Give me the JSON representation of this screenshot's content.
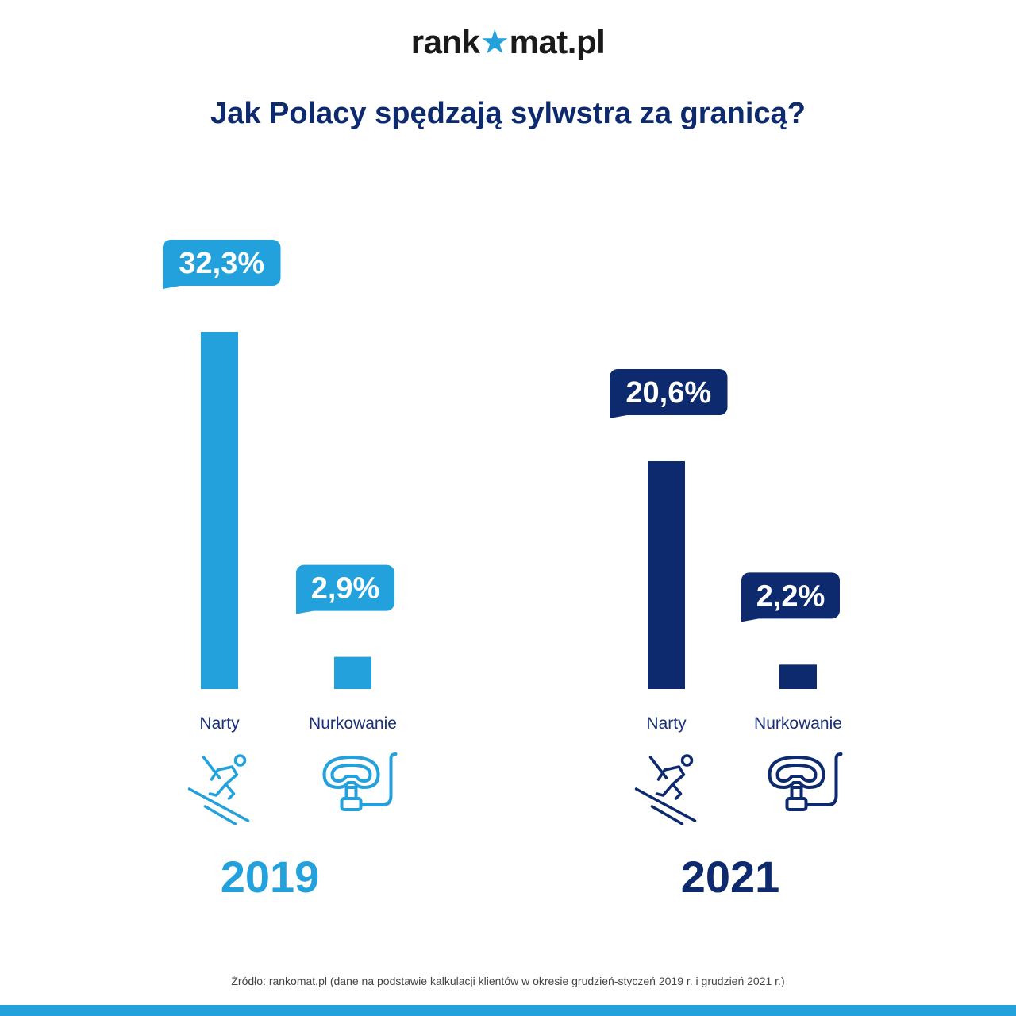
{
  "logo": {
    "left": "rank",
    "star": "★",
    "right": "mat.pl"
  },
  "title": "Jak Polacy spędzają sylwstra za granicą?",
  "source": "Źródło: rankomat.pl (dane na podstawie kalkulacji klientów w okresie grudzień-styczeń 2019 r. i grudzień 2021 r.)",
  "colors": {
    "light_blue": "#22a1dc",
    "navy": "#0d2a6e",
    "text_navy": "#1a2f7a"
  },
  "chart_data": [
    {
      "type": "bar",
      "title": "2019",
      "categories": [
        "Narty",
        "Nurkowanie"
      ],
      "values": [
        32.3,
        2.9
      ],
      "labels": [
        "32,3%",
        "2,9%"
      ],
      "color": "#22a1dc",
      "icons": [
        "skier-icon",
        "diving-mask-icon"
      ]
    },
    {
      "type": "bar",
      "title": "2021",
      "categories": [
        "Narty",
        "Nurkowanie"
      ],
      "values": [
        20.6,
        2.2
      ],
      "labels": [
        "20,6%",
        "2,2%"
      ],
      "color": "#0d2a6e",
      "icons": [
        "skier-icon",
        "diving-mask-icon"
      ]
    }
  ]
}
